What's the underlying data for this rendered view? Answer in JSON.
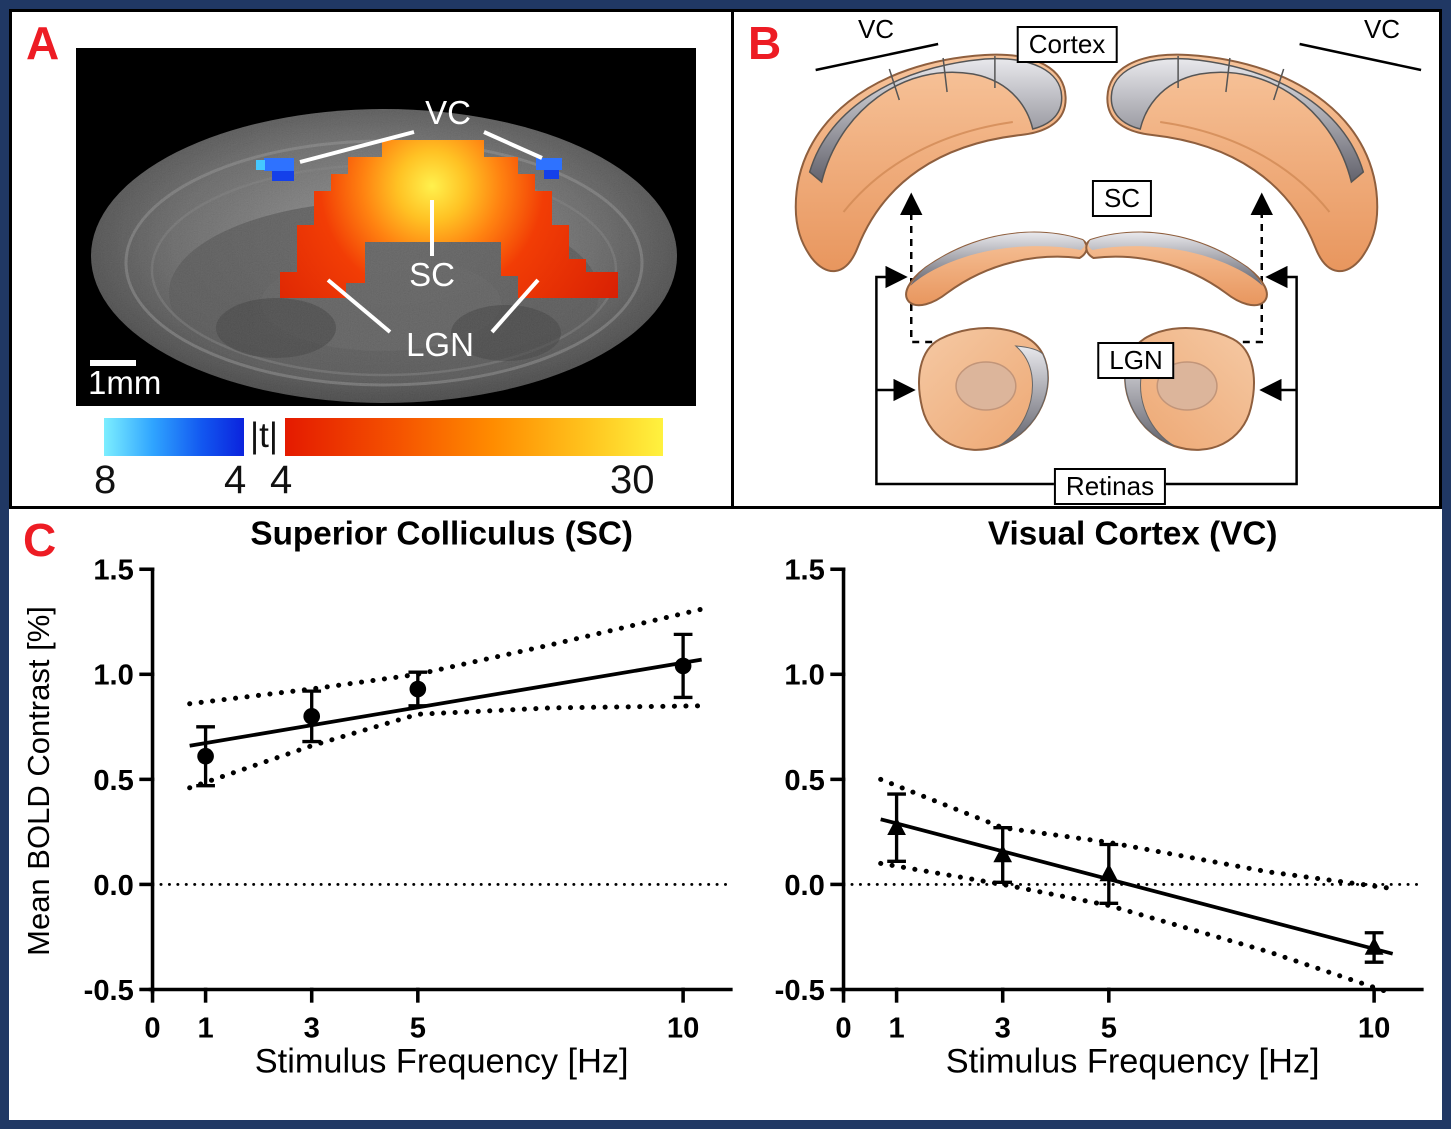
{
  "panelA": {
    "label": "A",
    "annotations": {
      "vc": "VC",
      "sc": "SC",
      "lgn": "LGN"
    },
    "scale_bar": "1mm",
    "colorbar": {
      "t_label": "|t|",
      "negative_min": "8",
      "negative_max": "4",
      "positive_min": "4",
      "positive_max": "30",
      "negative_colors": [
        "#7ceeff",
        "#0b23dd"
      ],
      "positive_colors": [
        "#e41a00",
        "#fff23f"
      ]
    }
  },
  "panelB": {
    "label": "B",
    "vc_left": "VC",
    "vc_right": "VC",
    "boxes": {
      "cortex": "Cortex",
      "sc": "SC",
      "lgn": "LGN",
      "retinas": "Retinas"
    }
  },
  "panelC": {
    "label": "C",
    "ylabel": "Mean BOLD Contrast [%]"
  },
  "chart_data": [
    {
      "type": "scatter",
      "title": "Superior Colliculus (SC)",
      "xlabel": "Stimulus Frequency [Hz]",
      "ylabel": "Mean BOLD Contrast [%]",
      "marker": "circle",
      "xlim": [
        0,
        10.9
      ],
      "ylim": [
        -0.5,
        1.5
      ],
      "xticks": [
        0,
        1,
        3,
        5,
        10
      ],
      "yticks": [
        -0.5,
        0,
        0.5,
        1,
        1.5
      ],
      "grid": false,
      "zero_line_dotted": true,
      "points": {
        "x": [
          1,
          3,
          5,
          10
        ],
        "y": [
          0.61,
          0.8,
          0.93,
          1.04
        ],
        "err": [
          0.14,
          0.12,
          0.08,
          0.15
        ]
      },
      "fit_line": {
        "x": [
          0.7,
          10.35
        ],
        "y": [
          0.66,
          1.07
        ]
      },
      "ci_upper": [
        [
          0.7,
          0.86
        ],
        [
          3,
          0.93
        ],
        [
          5,
          1.0
        ],
        [
          7.5,
          1.14
        ],
        [
          10.35,
          1.31
        ]
      ],
      "ci_lower": [
        [
          0.7,
          0.46
        ],
        [
          3,
          0.66
        ],
        [
          5,
          0.81
        ],
        [
          7.5,
          0.84
        ],
        [
          10.35,
          0.85
        ]
      ]
    },
    {
      "type": "scatter",
      "title": "Visual Cortex (VC)",
      "xlabel": "Stimulus Frequency [Hz]",
      "ylabel": "Mean BOLD Contrast [%]",
      "marker": "triangle",
      "xlim": [
        0,
        10.9
      ],
      "ylim": [
        -0.5,
        1.5
      ],
      "xticks": [
        0,
        1,
        3,
        5,
        10
      ],
      "yticks": [
        -0.5,
        0,
        0.5,
        1,
        1.5
      ],
      "grid": false,
      "zero_line_dotted": true,
      "points": {
        "x": [
          1,
          3,
          5,
          10
        ],
        "y": [
          0.27,
          0.14,
          0.05,
          -0.3
        ],
        "err": [
          0.16,
          0.13,
          0.14,
          0.07
        ]
      },
      "fit_line": {
        "x": [
          0.7,
          10.35
        ],
        "y": [
          0.31,
          -0.33
        ]
      },
      "ci_upper": [
        [
          0.7,
          0.5
        ],
        [
          3,
          0.27
        ],
        [
          5,
          0.2
        ],
        [
          8,
          0.06
        ],
        [
          10.35,
          -0.02
        ]
      ],
      "ci_lower": [
        [
          0.7,
          0.1
        ],
        [
          3,
          0.0
        ],
        [
          5,
          -0.1
        ],
        [
          8,
          -0.32
        ],
        [
          10.35,
          -0.52
        ]
      ]
    }
  ]
}
